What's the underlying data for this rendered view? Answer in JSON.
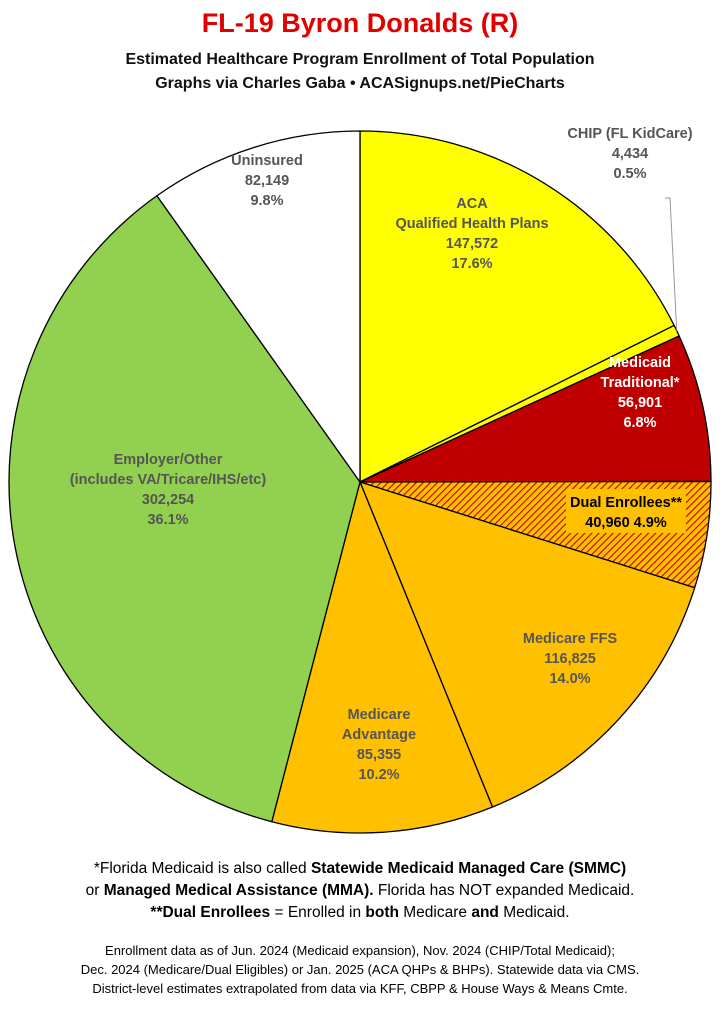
{
  "title": "FL-19 Byron Donalds (R)",
  "subtitle_1": "Estimated Healthcare Program Enrollment of Total Population",
  "subtitle_2": "Graphs via Charles Gaba  •  ACASignups.net/PieCharts",
  "chart_data": {
    "type": "pie",
    "start": "12 o'clock",
    "direction": "clockwise",
    "slices": [
      {
        "lines": [
          "ACA",
          "Qualified Health Plans"
        ],
        "value": 147572,
        "value_text": "147,572",
        "percent": "17.6%",
        "color": "#ffff00",
        "text_color": "#555555"
      },
      {
        "lines": [
          "CHIP (FL KidCare)"
        ],
        "value": 4434,
        "value_text": "4,434",
        "percent": "0.5%",
        "color": "#ffff00",
        "text_color": "#555555"
      },
      {
        "lines": [
          "Medicaid",
          "Traditional*"
        ],
        "value": 56901,
        "value_text": "56,901",
        "percent": "6.8%",
        "color": "#c00000",
        "text_color": "#ffffff"
      },
      {
        "lines": [
          "Dual Enrollees**"
        ],
        "value": 40960,
        "value_text": "40,960",
        "percent": "4.9%",
        "color": "#ffc000",
        "hatch_color": "#c00000",
        "text_color": "#000000"
      },
      {
        "lines": [
          "Medicare FFS"
        ],
        "value": 116825,
        "value_text": "116,825",
        "percent": "14.0%",
        "color": "#ffc000",
        "text_color": "#555555"
      },
      {
        "lines": [
          "Medicare",
          "Advantage"
        ],
        "value": 85355,
        "value_text": "85,355",
        "percent": "10.2%",
        "color": "#ffc000",
        "text_color": "#555555"
      },
      {
        "lines": [
          "Employer/Other",
          "(includes VA/Tricare/IHS/etc)"
        ],
        "value": 302254,
        "value_text": "302,254",
        "percent": "36.1%",
        "color": "#92d050",
        "text_color": "#555555"
      },
      {
        "lines": [
          "Uninsured"
        ],
        "value": 82149,
        "value_text": "82,149",
        "percent": "9.8%",
        "color": "#ffffff",
        "text_color": "#555555"
      }
    ]
  },
  "footnotes": {
    "line1": [
      {
        "t": "*Florida Medicaid is also called ",
        "b": false
      },
      {
        "t": "Statewide Medicaid Managed Care (SMMC)",
        "b": true
      }
    ],
    "line2": [
      {
        "t": "or ",
        "b": false
      },
      {
        "t": "Managed Medical Assistance (MMA).",
        "b": true
      },
      {
        "t": " Florida has NOT expanded Medicaid.",
        "b": false
      }
    ],
    "line3": [
      {
        "t": "**Dual Enrollees",
        "b": true
      },
      {
        "t": " = Enrolled in ",
        "b": false
      },
      {
        "t": "both",
        "b": true
      },
      {
        "t": " Medicare ",
        "b": false
      },
      {
        "t": "and",
        "b": true
      },
      {
        "t": " Medicaid.",
        "b": false
      }
    ]
  },
  "source_1": "Enrollment data as of Jun. 2024 (Medicaid expansion), Nov. 2024 (CHIP/Total Medicaid);",
  "source_2": "Dec. 2024 (Medicare/Dual Eligibles) or Jan. 2025 (ACA QHPs & BHPs). Statewide data via CMS.",
  "source_3": "District-level estimates extrapolated from data via KFF, CBPP & House Ways & Means Cmte."
}
